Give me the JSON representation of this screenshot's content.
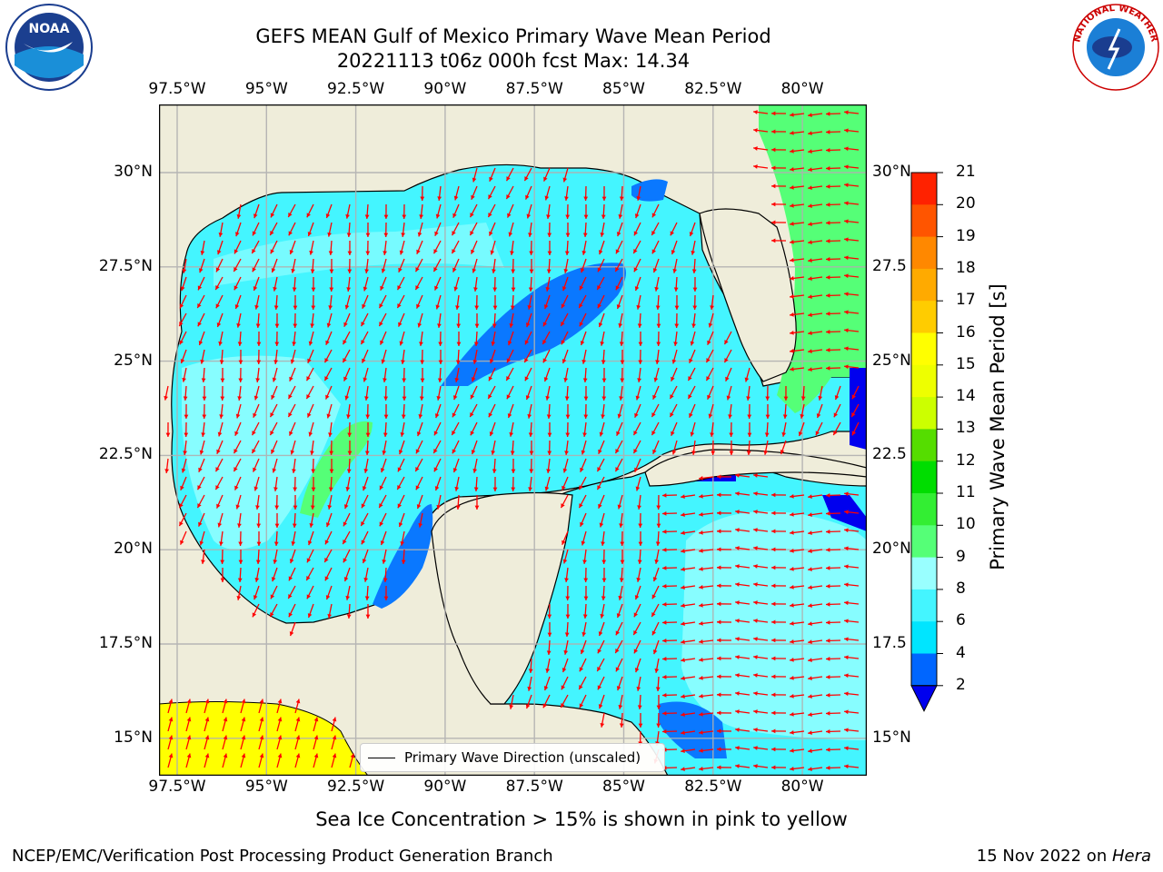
{
  "title_line1": "GEFS MEAN Gulf of Mexico Primary Wave Mean Period",
  "title_line2": "20221113 t06z 000h fcst   Max: 14.34",
  "lon_ticks": [
    "97.5°W",
    "95°W",
    "92.5°W",
    "90°W",
    "87.5°W",
    "85°W",
    "82.5°W",
    "80°W"
  ],
  "lat_ticks_left": [
    "30°N",
    "27.5°N",
    "25°N",
    "22.5°N",
    "20°N",
    "17.5°N",
    "15°N"
  ],
  "lat_ticks_right": [
    "30°N",
    "27.5",
    "25°N",
    "22.5",
    "20°N",
    "17.5",
    "15°N"
  ],
  "colorbar": {
    "label": "Primary Wave Mean Period [s]",
    "ticks": [
      "2",
      "4",
      "6",
      "8",
      "9",
      "10",
      "11",
      "12",
      "13",
      "14",
      "15",
      "16",
      "17",
      "18",
      "19",
      "20",
      "21"
    ],
    "colors": [
      "#0066ff",
      "#00e5ff",
      "#44f5ff",
      "#99ffff",
      "#55ff77",
      "#33ee33",
      "#00dd00",
      "#55dd00",
      "#ccff00",
      "#eeff00",
      "#ffff00",
      "#ffcc00",
      "#ffaa00",
      "#ff8800",
      "#ff5500",
      "#ff2200"
    ],
    "under_color": "#0000ee",
    "over_color": "#ff0000"
  },
  "legend_label": "Primary Wave Direction (unscaled)",
  "sea_ice_note": "Sea Ice Concentration > 15% is shown in pink to yellow",
  "footer_left": "NCEP/EMC/Verification Post Processing Product Generation Branch",
  "footer_right_date": "15 Nov 2022 on ",
  "footer_right_host": "Hera",
  "logos": {
    "noaa_text": "NOAA",
    "nws_ring_text": "NATIONAL WEATHER SERVICE"
  },
  "map_colors": {
    "land": "#efedda",
    "arrow": "#ff0000",
    "grid": "#b0b0b0",
    "coast": "#000000"
  }
}
